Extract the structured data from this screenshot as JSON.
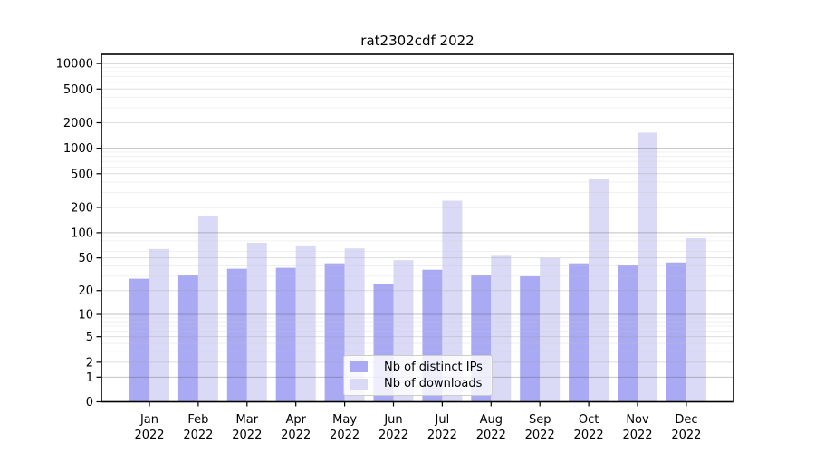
{
  "chart_data": {
    "type": "bar",
    "title": "rat2302cdf 2022",
    "year": "2022",
    "categories": [
      "Jan",
      "Feb",
      "Mar",
      "Apr",
      "May",
      "Jun",
      "Jul",
      "Aug",
      "Sep",
      "Oct",
      "Nov",
      "Dec"
    ],
    "series": [
      {
        "name": "Nb of distinct IPs",
        "color": "#a9a9f4",
        "values": [
          28,
          31,
          37,
          38,
          43,
          24,
          36,
          31,
          30,
          43,
          41,
          44
        ]
      },
      {
        "name": "Nb of downloads",
        "color": "#dadaf6",
        "values": [
          64,
          160,
          76,
          70,
          65,
          47,
          240,
          53,
          50,
          430,
          1530,
          86
        ]
      }
    ],
    "y_ticks": [
      0,
      1,
      2,
      5,
      10,
      20,
      50,
      100,
      200,
      500,
      1000,
      2000,
      5000,
      10000
    ],
    "y_tick_labels": [
      "0",
      "1",
      "2",
      "5",
      "10",
      "20",
      "50",
      "100",
      "200",
      "500",
      "1000",
      "2000",
      "5000",
      "10000"
    ],
    "y_scale": "log1p",
    "ylim": [
      0,
      12400
    ],
    "grid": true,
    "legend_position": "lower-center",
    "xlabel": "",
    "ylabel": ""
  }
}
